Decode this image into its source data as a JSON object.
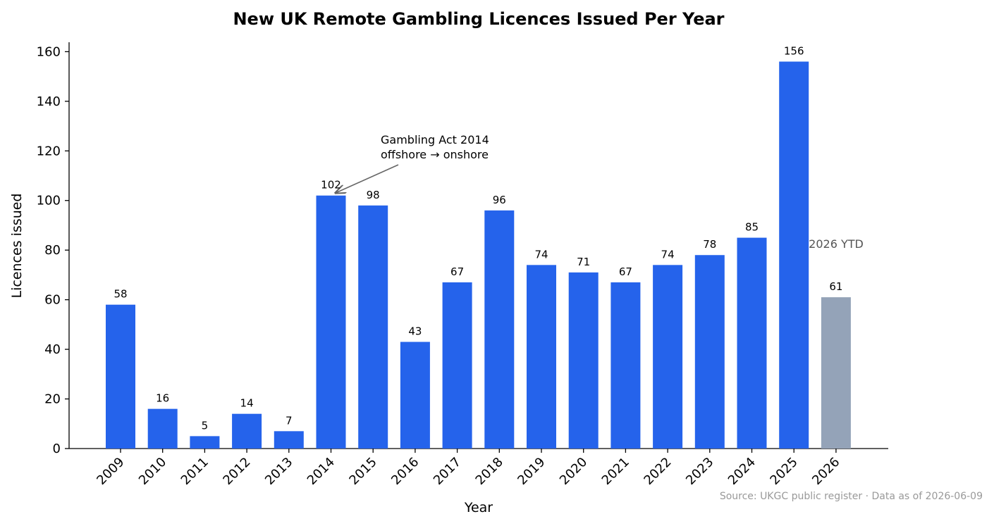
{
  "chart_data": {
    "type": "bar",
    "title": "New UK Remote Gambling Licences Issued Per Year",
    "x_label": "Year",
    "y_label": "Licences issued",
    "categories": [
      "2009",
      "2010",
      "2011",
      "2012",
      "2013",
      "2014",
      "2015",
      "2016",
      "2017",
      "2018",
      "2019",
      "2020",
      "2021",
      "2022",
      "2023",
      "2024",
      "2025",
      "2026"
    ],
    "values": [
      58,
      16,
      5,
      14,
      7,
      102,
      98,
      43,
      67,
      96,
      74,
      71,
      67,
      74,
      78,
      85,
      156,
      61
    ],
    "colors": [
      "#2563eb",
      "#2563eb",
      "#2563eb",
      "#2563eb",
      "#2563eb",
      "#2563eb",
      "#2563eb",
      "#2563eb",
      "#2563eb",
      "#2563eb",
      "#2563eb",
      "#2563eb",
      "#2563eb",
      "#2563eb",
      "#2563eb",
      "#2563eb",
      "#2563eb",
      "#94a3b8"
    ],
    "ylim": [
      0,
      163.8
    ],
    "yticks": [
      0,
      20,
      40,
      60,
      80,
      100,
      120,
      140,
      160
    ],
    "annotation": [
      "Gambling Act 2014",
      "offshore → onshore"
    ],
    "ytd_label": "2026 YTD",
    "source": "Source: UKGC public register · Data as of 2026-06-09"
  }
}
